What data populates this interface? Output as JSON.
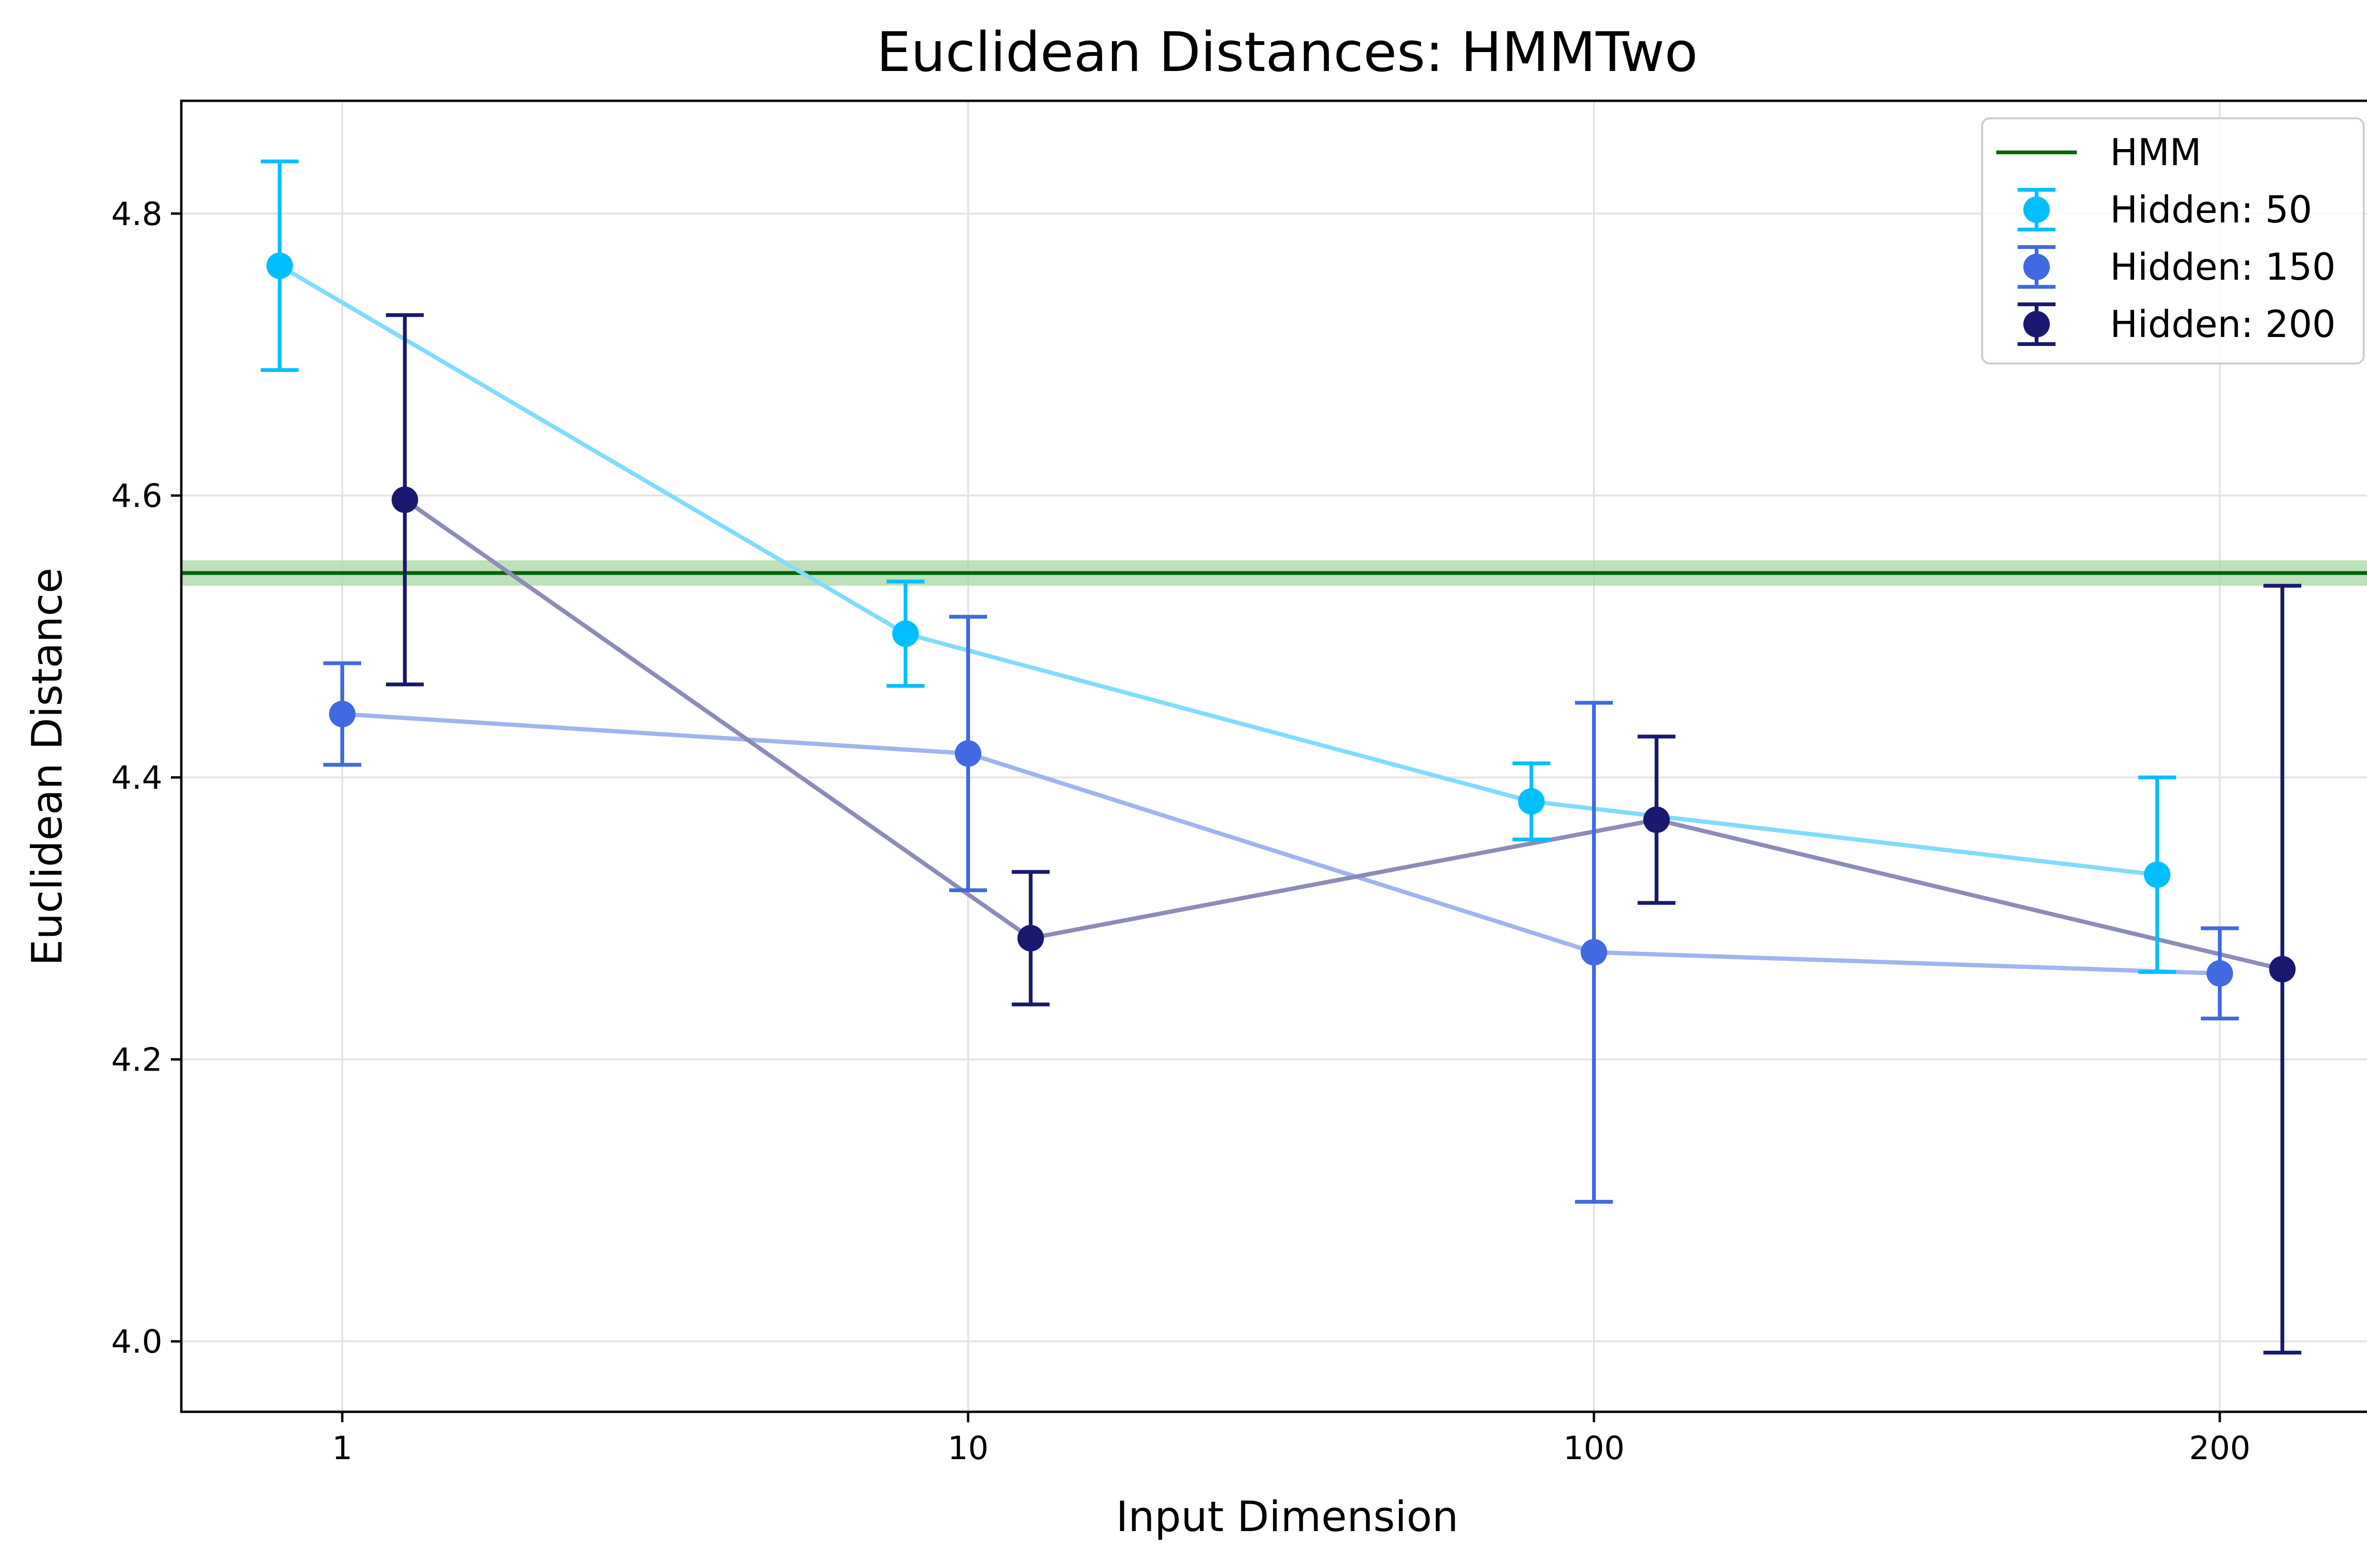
{
  "chart_data": {
    "type": "scatter",
    "title": "Euclidean Distances: HMMTwo",
    "xlabel": "Input Dimension",
    "ylabel": "Euclidean Distance",
    "categories": [
      "1",
      "10",
      "100",
      "200"
    ],
    "ylim": [
      3.95,
      4.88
    ],
    "yticks": [
      "4.0",
      "4.2",
      "4.4",
      "4.6",
      "4.8"
    ],
    "grid": true,
    "legend_position": "top-right",
    "reference_line": {
      "name": "HMM",
      "value": 4.545,
      "band": [
        4.536,
        4.554
      ],
      "color": "#006400",
      "band_color": "#a8d5a0"
    },
    "series": [
      {
        "name": "Hidden: 50",
        "color": "#00bfff",
        "line_color": "#80dcff",
        "offset": -0.1,
        "values": [
          4.763,
          4.502,
          4.383,
          4.331
        ],
        "errors": [
          0.074,
          0.037,
          0.027,
          0.069
        ]
      },
      {
        "name": "Hidden: 150",
        "color": "#4169e1",
        "line_color": "#a0b4f0",
        "offset": 0.0,
        "values": [
          4.445,
          4.417,
          4.276,
          4.261
        ],
        "errors": [
          0.036,
          0.097,
          0.177,
          0.032
        ]
      },
      {
        "name": "Hidden: 200",
        "color": "#191970",
        "line_color": "#8c8cb8",
        "offset": 0.1,
        "values": [
          4.597,
          4.286,
          4.37,
          4.264
        ],
        "errors": [
          0.131,
          0.047,
          0.059,
          0.272
        ]
      }
    ]
  }
}
